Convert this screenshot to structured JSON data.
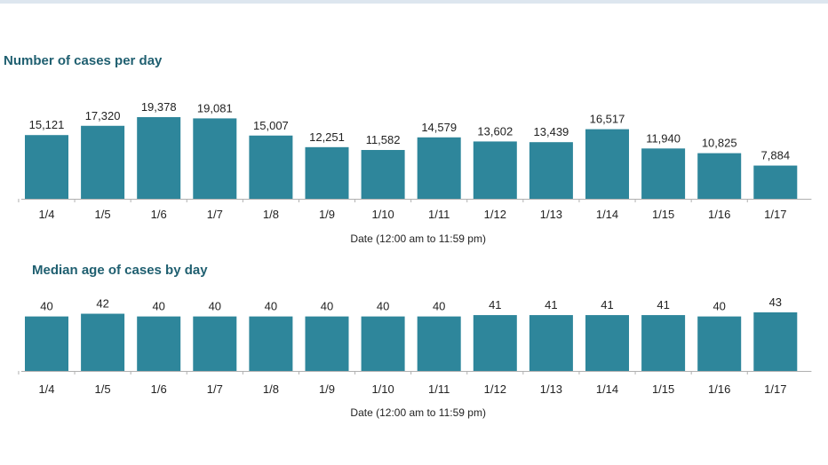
{
  "colors": {
    "bar": "#2e869b",
    "title": "#1f5f70",
    "axis": "#b0b0b0"
  },
  "chart_data": [
    {
      "type": "bar",
      "title": "Number of cases per day",
      "xlabel": "Date (12:00 am to 11:59 pm)",
      "ylabel": "",
      "categories": [
        "1/4",
        "1/5",
        "1/6",
        "1/7",
        "1/8",
        "1/9",
        "1/10",
        "1/11",
        "1/12",
        "1/13",
        "1/14",
        "1/15",
        "1/16",
        "1/17"
      ],
      "values": [
        15121,
        17320,
        19378,
        19081,
        15007,
        12251,
        11582,
        14579,
        13602,
        13439,
        16517,
        11940,
        10825,
        7884
      ],
      "value_labels": [
        "15,121",
        "17,320",
        "19,378",
        "19,081",
        "15,007",
        "12,251",
        "11,582",
        "14,579",
        "13,602",
        "13,439",
        "16,517",
        "11,940",
        "10,825",
        "7,884"
      ],
      "ylim": [
        0,
        19378
      ],
      "grid": false,
      "legend": "none"
    },
    {
      "type": "bar",
      "title": "Median age of cases by day",
      "xlabel": "Date (12:00 am to 11:59 pm)",
      "ylabel": "",
      "categories": [
        "1/4",
        "1/5",
        "1/6",
        "1/7",
        "1/8",
        "1/9",
        "1/10",
        "1/11",
        "1/12",
        "1/13",
        "1/14",
        "1/15",
        "1/16",
        "1/17"
      ],
      "values": [
        40,
        42,
        40,
        40,
        40,
        40,
        40,
        40,
        41,
        41,
        41,
        41,
        40,
        43
      ],
      "value_labels": [
        "40",
        "42",
        "40",
        "40",
        "40",
        "40",
        "40",
        "40",
        "41",
        "41",
        "41",
        "41",
        "40",
        "43"
      ],
      "ylim": [
        0,
        43
      ],
      "grid": false,
      "legend": "none"
    }
  ]
}
